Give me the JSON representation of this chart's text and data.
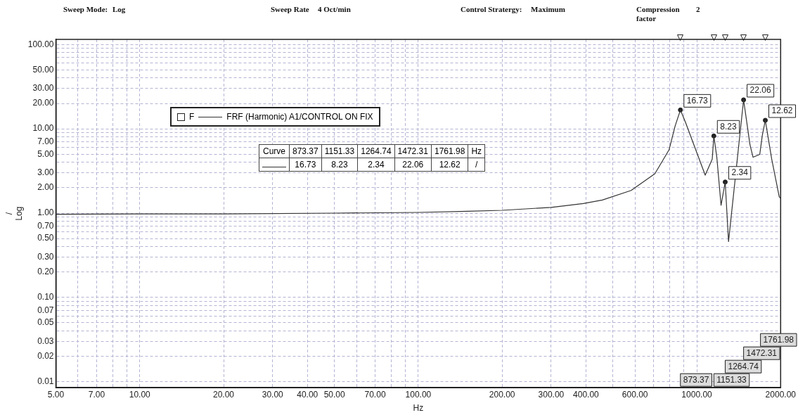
{
  "chart_data": {
    "type": "line",
    "annotations": [
      "Sweep Mode:",
      "Log",
      "Sweep Rate",
      "4 Oct/min",
      "Control Stratergy:",
      "Maximum",
      "Compression factor",
      "2",
      "Curve",
      "Hz",
      "/",
      "873.37",
      "1151.33",
      "1264.74",
      "1472.31",
      "1761.98",
      "16.73",
      "8.23",
      "2.34",
      "22.06",
      "12.62"
    ],
    "xlabel": "Hz",
    "ylabel": "/\nLog",
    "legend_title": "F",
    "legend": "top left",
    "grid": true,
    "log": "xy",
    "line_style": "solid",
    "xlim": [
      5,
      2000
    ],
    "ylim": [
      0.0085,
      115
    ],
    "xticks": [
      {
        "value": 5,
        "label": "5.00"
      },
      {
        "value": 6,
        "label": null
      },
      {
        "value": 7,
        "label": "7.00"
      },
      {
        "value": 8,
        "label": null
      },
      {
        "value": 9,
        "label": null
      },
      {
        "value": 10,
        "label": "10.00"
      },
      {
        "value": 20,
        "label": "20.00"
      },
      {
        "value": 30,
        "label": "30.00"
      },
      {
        "value": 40,
        "label": "40.00"
      },
      {
        "value": 50,
        "label": "50.00"
      },
      {
        "value": 60,
        "label": null
      },
      {
        "value": 70,
        "label": "70.00"
      },
      {
        "value": 80,
        "label": null
      },
      {
        "value": 90,
        "label": null
      },
      {
        "value": 100,
        "label": "100.00"
      },
      {
        "value": 200,
        "label": "200.00"
      },
      {
        "value": 300,
        "label": "300.00"
      },
      {
        "value": 400,
        "label": "400.00"
      },
      {
        "value": 500,
        "label": null
      },
      {
        "value": 600,
        "label": "600.00"
      },
      {
        "value": 700,
        "label": null
      },
      {
        "value": 800,
        "label": null
      },
      {
        "value": 900,
        "label": null
      },
      {
        "value": 1000,
        "label": "1000.00"
      },
      {
        "value": 2000,
        "label": "2000.00"
      }
    ],
    "yticks": [
      {
        "value": 0.01,
        "label": "0.01"
      },
      {
        "value": 0.02,
        "label": "0.02"
      },
      {
        "value": 0.03,
        "label": "0.03"
      },
      {
        "value": 0.04,
        "label": null
      },
      {
        "value": 0.05,
        "label": "0.05"
      },
      {
        "value": 0.06,
        "label": null
      },
      {
        "value": 0.07,
        "label": "0.07"
      },
      {
        "value": 0.08,
        "label": null
      },
      {
        "value": 0.09,
        "label": null
      },
      {
        "value": 0.1,
        "label": "0.10"
      },
      {
        "value": 0.2,
        "label": "0.20"
      },
      {
        "value": 0.3,
        "label": "0.30"
      },
      {
        "value": 0.4,
        "label": null
      },
      {
        "value": 0.5,
        "label": "0.50"
      },
      {
        "value": 0.6,
        "label": null
      },
      {
        "value": 0.7,
        "label": "0.70"
      },
      {
        "value": 0.8,
        "label": null
      },
      {
        "value": 0.9,
        "label": null
      },
      {
        "value": 1,
        "label": "1.00"
      },
      {
        "value": 2,
        "label": "2.00"
      },
      {
        "value": 3,
        "label": "3.00"
      },
      {
        "value": 4,
        "label": null
      },
      {
        "value": 5,
        "label": "5.00"
      },
      {
        "value": 6,
        "label": null
      },
      {
        "value": 7,
        "label": "7.00"
      },
      {
        "value": 8,
        "label": null
      },
      {
        "value": 9,
        "label": null
      },
      {
        "value": 10,
        "label": "10.00"
      },
      {
        "value": 20,
        "label": "20.00"
      },
      {
        "value": 30,
        "label": "30.00"
      },
      {
        "value": 40,
        "label": null
      },
      {
        "value": 50,
        "label": "50.00"
      },
      {
        "value": 60,
        "label": null
      },
      {
        "value": 70,
        "label": null
      },
      {
        "value": 80,
        "label": null
      },
      {
        "value": 90,
        "label": null
      },
      {
        "value": 100,
        "label": "100.00"
      }
    ],
    "series": [
      {
        "type": "line",
        "name": "FRF (Harmonic) A1/CONTROL ON FIX",
        "color": "#333333",
        "marker": "none",
        "x": [
          5,
          10,
          20,
          50,
          100,
          150,
          200,
          300,
          391,
          458,
          581,
          707,
          795,
          836,
          873.37,
          912,
          1072,
          1136,
          1151.33,
          1180,
          1222,
          1264.74,
          1300,
          1472.31,
          1552,
          1592,
          1683,
          1718,
          1761.98,
          1857,
          1977,
          2000
        ],
        "values": [
          0.97,
          0.98,
          0.98,
          1.0,
          1.02,
          1.05,
          1.08,
          1.17,
          1.3,
          1.43,
          1.86,
          2.93,
          5.63,
          10.8,
          16.73,
          11.8,
          2.82,
          4.36,
          8.23,
          4.6,
          1.24,
          2.34,
          0.46,
          22.06,
          6.5,
          4.6,
          4.97,
          8.3,
          12.62,
          4.4,
          1.56,
          1.5
        ]
      },
      {
        "type": "scatter",
        "color": "#222222",
        "marker": "circle",
        "data_labels": true,
        "x": [
          873.37,
          1151.33,
          1264.74,
          1472.31,
          1761.98
        ],
        "values": [
          16.73,
          8.23,
          2.34,
          22.06,
          12.62
        ]
      }
    ]
  }
}
